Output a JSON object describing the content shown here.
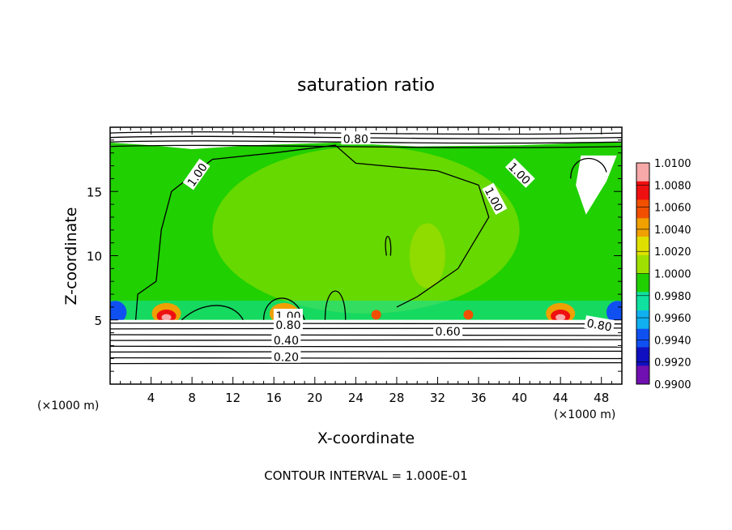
{
  "chart_data": {
    "type": "heatmap",
    "title": "saturation ratio",
    "xlabel": "X-coordinate",
    "ylabel": "Z-coordinate",
    "x_unit_left": "(×1000 m)",
    "x_unit_right": "(×1000 m)",
    "xlim": [
      0,
      50
    ],
    "ylim": [
      0,
      20
    ],
    "x_ticks": [
      4,
      8,
      12,
      16,
      20,
      24,
      28,
      32,
      36,
      40,
      44,
      48
    ],
    "x_tick_labels": [
      "4",
      "8",
      "12",
      "16",
      "20",
      "24",
      "28",
      "32",
      "36",
      "40",
      "44",
      "48"
    ],
    "y_ticks": [
      5,
      10,
      15
    ],
    "y_tick_labels": [
      "5",
      "10",
      "15"
    ],
    "colorbar": {
      "min": 0.99,
      "max": 1.01,
      "levels": [
        1.01,
        1.008,
        1.006,
        1.004,
        1.002,
        1.0,
        0.998,
        0.996,
        0.994,
        0.992,
        0.99
      ],
      "labels": [
        "1.0100",
        "1.0080",
        "1.0060",
        "1.0040",
        "1.0020",
        "1.0000",
        "0.9980",
        "0.9960",
        "0.9940",
        "0.9920",
        "0.9900"
      ],
      "colors": [
        "#f7a8a8",
        "#ee1010",
        "#f05000",
        "#f0a000",
        "#e0e000",
        "#a0e000",
        "#20d000",
        "#10e0a0",
        "#10b0f0",
        "#1050f0",
        "#1010c0",
        "#7010b0"
      ]
    },
    "contour_interval_text": "CONTOUR INTERVAL = 1.000E-01",
    "contour_labels": [
      "0.80",
      "1.00",
      "1.00",
      "1.00",
      "1.00",
      "0.80",
      "0.40",
      "0.20",
      "0.60",
      "0.80"
    ],
    "grid": false,
    "legend_position": "right"
  }
}
